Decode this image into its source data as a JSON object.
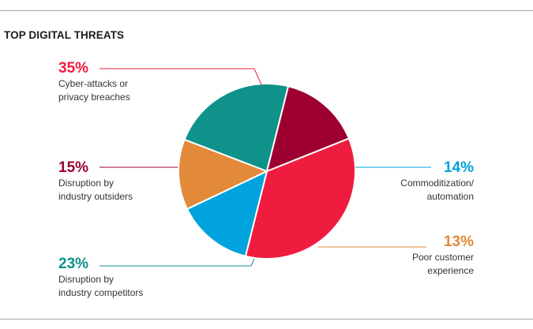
{
  "chart_data": {
    "type": "pie",
    "title": "TOP DIGITAL THREATS",
    "slices": [
      {
        "value": 35,
        "label": "35%",
        "line1": "Cyber-attacks or",
        "line2": "privacy breaches",
        "color": "#ef1c3f"
      },
      {
        "value": 14,
        "label": "14%",
        "line1": "Commoditization/",
        "line2": "automation",
        "color": "#00a3dd"
      },
      {
        "value": 13,
        "label": "13%",
        "line1": "Poor customer",
        "line2": "experience",
        "color": "#e2893a"
      },
      {
        "value": 23,
        "label": "23%",
        "line1": "Disruption by",
        "line2": "industry competitors",
        "color": "#0e928a"
      },
      {
        "value": 15,
        "label": "15%",
        "line1": "Disruption by",
        "line2": "industry outsiders",
        "color": "#9d0030"
      }
    ]
  }
}
